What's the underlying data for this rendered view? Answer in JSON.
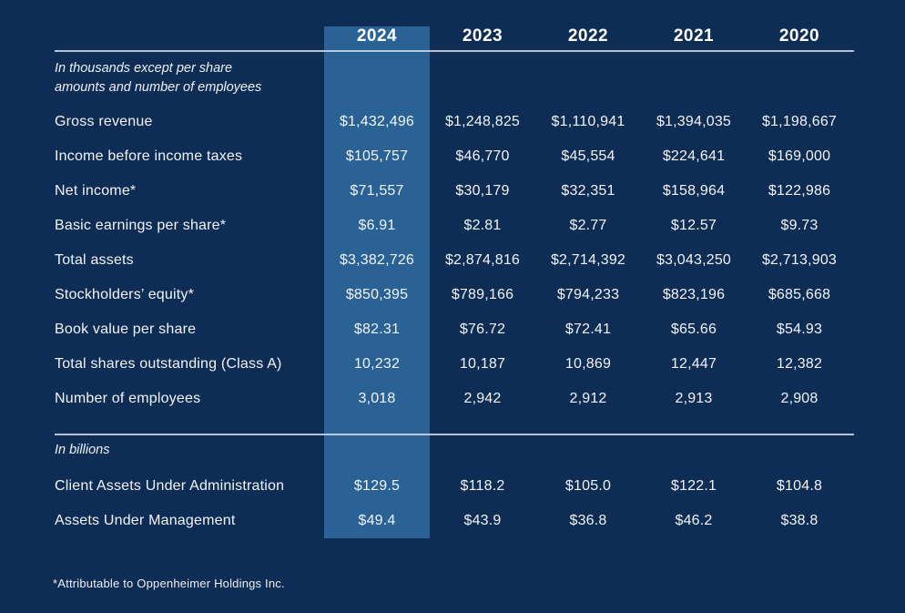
{
  "colors": {
    "background": "#0d2d55",
    "highlight_column": "#2a6295",
    "rule": "#d5deea",
    "text": "#f2f4f7"
  },
  "table": {
    "years": [
      "2024",
      "2023",
      "2022",
      "2021",
      "2020"
    ],
    "highlighted_year": "2024",
    "unit_note_line1": "In thousands except per share",
    "unit_note_line2": "amounts and number of employees",
    "rows": [
      {
        "label": "Gross revenue",
        "values": [
          "$1,432,496",
          "$1,248,825",
          "$1,110,941",
          "$1,394,035",
          "$1,198,667"
        ]
      },
      {
        "label": "Income before income taxes",
        "values": [
          "$105,757",
          "$46,770",
          "$45,554",
          "$224,641",
          "$169,000"
        ]
      },
      {
        "label": "Net income*",
        "values": [
          "$71,557",
          "$30,179",
          "$32,351",
          "$158,964",
          "$122,986"
        ]
      },
      {
        "label": "Basic earnings per share*",
        "values": [
          "$6.91",
          "$2.81",
          "$2.77",
          "$12.57",
          "$9.73"
        ]
      },
      {
        "label": "Total assets",
        "values": [
          "$3,382,726",
          "$2,874,816",
          "$2,714,392",
          "$3,043,250",
          "$2,713,903"
        ]
      },
      {
        "label": "Stockholders’ equity*",
        "values": [
          "$850,395",
          "$789,166",
          "$794,233",
          "$823,196",
          "$685,668"
        ]
      },
      {
        "label": "Book value per share",
        "values": [
          "$82.31",
          "$76.72",
          "$72.41",
          "$65.66",
          "$54.93"
        ]
      },
      {
        "label": "Total shares outstanding (Class A)",
        "values": [
          "10,232",
          "10,187",
          "10,869",
          "12,447",
          "12,382"
        ]
      },
      {
        "label": "Number of employees",
        "values": [
          "3,018",
          "2,942",
          "2,912",
          "2,913",
          "2,908"
        ]
      }
    ],
    "billions_note": "In billions",
    "billions_rows": [
      {
        "label": "Client Assets Under Administration",
        "values": [
          "$129.5",
          "$118.2",
          "$105.0",
          "$122.1",
          "$104.8"
        ]
      },
      {
        "label": "Assets Under Management",
        "values": [
          "$49.4",
          "$43.9",
          "$36.8",
          "$46.2",
          "$38.8"
        ]
      }
    ],
    "footnote": "*Attributable to Oppenheimer Holdings Inc."
  }
}
